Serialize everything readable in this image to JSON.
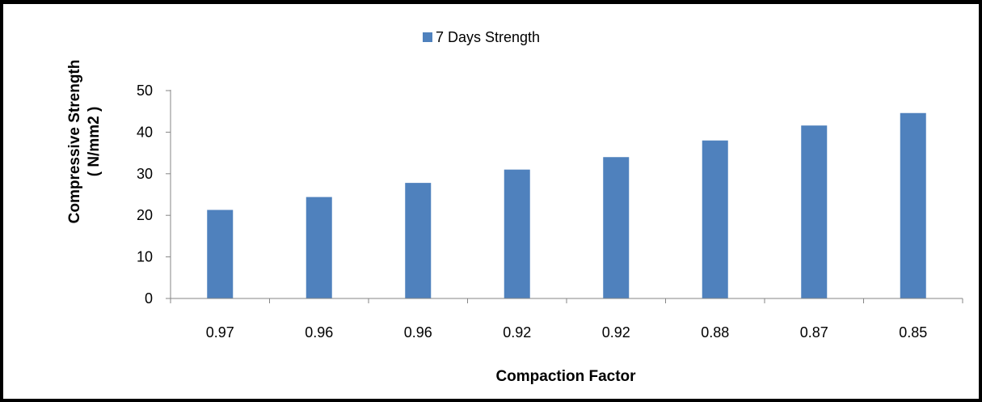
{
  "chart_data": {
    "type": "bar",
    "categories": [
      "0.97",
      "0.96",
      "0.96",
      "0.92",
      "0.92",
      "0.88",
      "0.87",
      "0.85"
    ],
    "series": [
      {
        "name": "7 Days Strength",
        "values": [
          21.3,
          24.4,
          27.8,
          31.0,
          34.0,
          38.0,
          41.6,
          44.6
        ],
        "color": "#4F81BD"
      }
    ],
    "xlabel": "Compaction Factor",
    "ylabel": [
      "Compressive Strength",
      "( N/mm2 )"
    ],
    "ylim": [
      0,
      50
    ],
    "yticks": [
      0,
      10,
      20,
      30,
      40,
      50
    ],
    "grid": false,
    "legend": "top-center"
  }
}
